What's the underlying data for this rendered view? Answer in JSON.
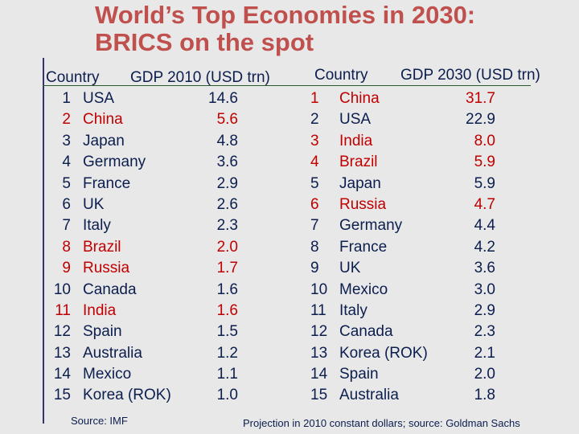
{
  "title": "World’s Top Economies in 2030: BRICS on the spot",
  "left_table": {
    "header_country": "Country",
    "header_gdp": "GDP 2010 (USD trn)",
    "rows": [
      {
        "rank": "1",
        "country": "USA",
        "gdp": "14.6",
        "brics": false
      },
      {
        "rank": "2",
        "country": "China",
        "gdp": "5.6",
        "brics": true
      },
      {
        "rank": "3",
        "country": "Japan",
        "gdp": "4.8",
        "brics": false
      },
      {
        "rank": "4",
        "country": "Germany",
        "gdp": "3.6",
        "brics": false
      },
      {
        "rank": "5",
        "country": "France",
        "gdp": "2.9",
        "brics": false
      },
      {
        "rank": "6",
        "country": "UK",
        "gdp": "2.6",
        "brics": false
      },
      {
        "rank": "7",
        "country": "Italy",
        "gdp": "2.3",
        "brics": false
      },
      {
        "rank": "8",
        "country": "Brazil",
        "gdp": "2.0",
        "brics": true
      },
      {
        "rank": "9",
        "country": "Russia",
        "gdp": "1.7",
        "brics": true
      },
      {
        "rank": "10",
        "country": "Canada",
        "gdp": "1.6",
        "brics": false
      },
      {
        "rank": "11",
        "country": "India",
        "gdp": "1.6",
        "brics": true
      },
      {
        "rank": "12",
        "country": "Spain",
        "gdp": "1.5",
        "brics": false
      },
      {
        "rank": "13",
        "country": "Australia",
        "gdp": "1.2",
        "brics": false
      },
      {
        "rank": "14",
        "country": "Mexico",
        "gdp": "1.1",
        "brics": false
      },
      {
        "rank": "15",
        "country": "Korea (ROK)",
        "gdp": "1.0",
        "brics": false
      }
    ],
    "source": "Source: IMF"
  },
  "right_table": {
    "header_country": "Country",
    "header_gdp": "GDP 2030 (USD trn)",
    "rows": [
      {
        "rank": "1",
        "country": "China",
        "gdp": "31.7",
        "brics": true
      },
      {
        "rank": "2",
        "country": "USA",
        "gdp": "22.9",
        "brics": false
      },
      {
        "rank": "3",
        "country": "India",
        "gdp": "8.0",
        "brics": true
      },
      {
        "rank": "4",
        "country": "Brazil",
        "gdp": "5.9",
        "brics": true
      },
      {
        "rank": "5",
        "country": "Japan",
        "gdp": "5.9",
        "brics": false
      },
      {
        "rank": "6",
        "country": "Russia",
        "gdp": "4.7",
        "brics": true
      },
      {
        "rank": "7",
        "country": "Germany",
        "gdp": "4.4",
        "brics": false
      },
      {
        "rank": "8",
        "country": "France",
        "gdp": "4.2",
        "brics": false
      },
      {
        "rank": "9",
        "country": "UK",
        "gdp": "3.6",
        "brics": false
      },
      {
        "rank": "10",
        "country": "Mexico",
        "gdp": "3.0",
        "brics": false
      },
      {
        "rank": "11",
        "country": "Italy",
        "gdp": "2.9",
        "brics": false
      },
      {
        "rank": "12",
        "country": "Canada",
        "gdp": "2.3",
        "brics": false
      },
      {
        "rank": "13",
        "country": "Korea (ROK)",
        "gdp": "2.1",
        "brics": false
      },
      {
        "rank": "14",
        "country": "Spain",
        "gdp": "2.0",
        "brics": false
      },
      {
        "rank": "15",
        "country": "Australia",
        "gdp": "1.8",
        "brics": false
      }
    ],
    "source": "Projection in 2010 constant dollars; source: Goldman Sachs"
  },
  "colors": {
    "title": "#c0504d",
    "text": "#0c1e4e",
    "brics_highlight": "#c00000",
    "background": "#e8e8e8"
  }
}
